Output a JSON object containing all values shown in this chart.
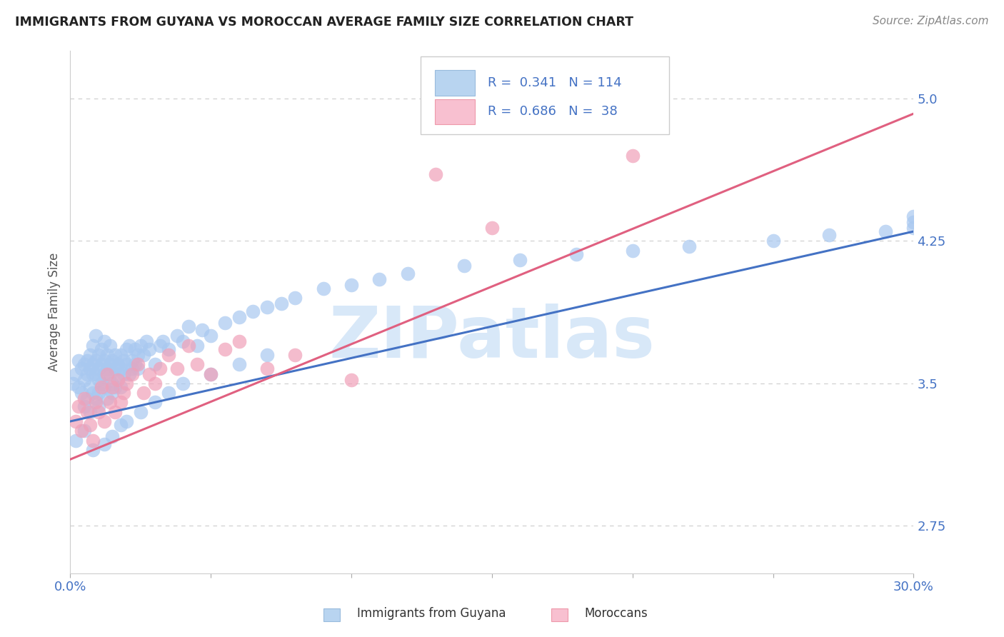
{
  "title": "IMMIGRANTS FROM GUYANA VS MOROCCAN AVERAGE FAMILY SIZE CORRELATION CHART",
  "source_text": "Source: ZipAtlas.com",
  "ylabel": "Average Family Size",
  "xmin": 0.0,
  "xmax": 0.3,
  "ymin": 2.5,
  "ymax": 5.25,
  "yticks": [
    2.75,
    3.5,
    4.25,
    5.0
  ],
  "xticks": [
    0.0,
    0.05,
    0.1,
    0.15,
    0.2,
    0.25,
    0.3
  ],
  "xtick_labels": [
    "0.0%",
    "",
    "",
    "",
    "",
    "",
    "30.0%"
  ],
  "blue_R": 0.341,
  "blue_N": 114,
  "pink_R": 0.686,
  "pink_N": 38,
  "blue_color": "#A8C8F0",
  "pink_color": "#F0A0B8",
  "blue_line_color": "#4472C4",
  "pink_line_color": "#E06080",
  "legend_blue_box": "#B8D4F0",
  "legend_pink_box": "#F8C0D0",
  "title_color": "#222222",
  "axis_label_color": "#4472C4",
  "tick_color": "#4472C4",
  "watermark_color": "#D8E8F8",
  "watermark_text": "ZIPatlas",
  "background_color": "#FFFFFF",
  "grid_color": "#CCCCCC",
  "blue_scatter_x": [
    0.001,
    0.002,
    0.003,
    0.003,
    0.004,
    0.004,
    0.005,
    0.005,
    0.005,
    0.006,
    0.006,
    0.006,
    0.007,
    0.007,
    0.007,
    0.007,
    0.008,
    0.008,
    0.008,
    0.008,
    0.009,
    0.009,
    0.009,
    0.009,
    0.01,
    0.01,
    0.01,
    0.01,
    0.01,
    0.011,
    0.011,
    0.011,
    0.012,
    0.012,
    0.012,
    0.012,
    0.013,
    0.013,
    0.013,
    0.014,
    0.014,
    0.014,
    0.015,
    0.015,
    0.015,
    0.016,
    0.016,
    0.016,
    0.017,
    0.017,
    0.018,
    0.018,
    0.018,
    0.019,
    0.019,
    0.02,
    0.02,
    0.021,
    0.021,
    0.022,
    0.022,
    0.023,
    0.023,
    0.024,
    0.024,
    0.025,
    0.026,
    0.027,
    0.028,
    0.03,
    0.032,
    0.033,
    0.035,
    0.038,
    0.04,
    0.042,
    0.045,
    0.047,
    0.05,
    0.055,
    0.06,
    0.065,
    0.07,
    0.075,
    0.08,
    0.09,
    0.1,
    0.11,
    0.12,
    0.14,
    0.16,
    0.18,
    0.2,
    0.22,
    0.25,
    0.27,
    0.29,
    0.3,
    0.3,
    0.3,
    0.002,
    0.005,
    0.008,
    0.012,
    0.015,
    0.018,
    0.02,
    0.025,
    0.03,
    0.035,
    0.04,
    0.05,
    0.06,
    0.07
  ],
  "blue_scatter_y": [
    3.5,
    3.55,
    3.48,
    3.62,
    3.45,
    3.58,
    3.52,
    3.6,
    3.38,
    3.55,
    3.62,
    3.42,
    3.58,
    3.65,
    3.48,
    3.35,
    3.6,
    3.55,
    3.45,
    3.7,
    3.55,
    3.62,
    3.42,
    3.75,
    3.58,
    3.65,
    3.52,
    3.45,
    3.38,
    3.6,
    3.68,
    3.5,
    3.55,
    3.62,
    3.72,
    3.48,
    3.58,
    3.65,
    3.42,
    3.6,
    3.55,
    3.7,
    3.5,
    3.62,
    3.45,
    3.58,
    3.65,
    3.48,
    3.6,
    3.55,
    3.58,
    3.65,
    3.48,
    3.55,
    3.62,
    3.6,
    3.68,
    3.55,
    3.7,
    3.58,
    3.62,
    3.6,
    3.68,
    3.65,
    3.58,
    3.7,
    3.65,
    3.72,
    3.68,
    3.6,
    3.7,
    3.72,
    3.68,
    3.75,
    3.72,
    3.8,
    3.7,
    3.78,
    3.75,
    3.82,
    3.85,
    3.88,
    3.9,
    3.92,
    3.95,
    4.0,
    4.02,
    4.05,
    4.08,
    4.12,
    4.15,
    4.18,
    4.2,
    4.22,
    4.25,
    4.28,
    4.3,
    4.32,
    4.35,
    4.38,
    3.2,
    3.25,
    3.15,
    3.18,
    3.22,
    3.28,
    3.3,
    3.35,
    3.4,
    3.45,
    3.5,
    3.55,
    3.6,
    3.65
  ],
  "pink_scatter_x": [
    0.002,
    0.003,
    0.004,
    0.005,
    0.006,
    0.007,
    0.008,
    0.009,
    0.01,
    0.011,
    0.012,
    0.013,
    0.014,
    0.015,
    0.016,
    0.017,
    0.018,
    0.019,
    0.02,
    0.022,
    0.024,
    0.026,
    0.028,
    0.03,
    0.032,
    0.035,
    0.038,
    0.042,
    0.045,
    0.05,
    0.055,
    0.06,
    0.07,
    0.08,
    0.1,
    0.13,
    0.15,
    0.2
  ],
  "pink_scatter_y": [
    3.3,
    3.38,
    3.25,
    3.42,
    3.35,
    3.28,
    3.2,
    3.4,
    3.35,
    3.48,
    3.3,
    3.55,
    3.4,
    3.48,
    3.35,
    3.52,
    3.4,
    3.45,
    3.5,
    3.55,
    3.6,
    3.45,
    3.55,
    3.5,
    3.58,
    3.65,
    3.58,
    3.7,
    3.6,
    3.55,
    3.68,
    3.72,
    3.58,
    3.65,
    3.52,
    4.6,
    4.32,
    4.7
  ]
}
